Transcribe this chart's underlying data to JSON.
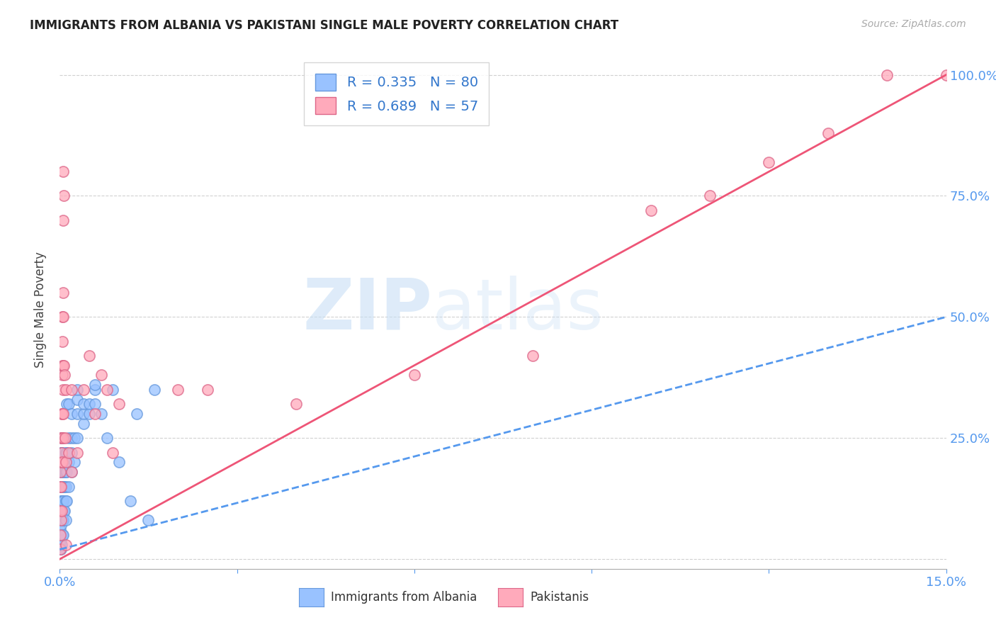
{
  "title": "IMMIGRANTS FROM ALBANIA VS PAKISTANI SINGLE MALE POVERTY CORRELATION CHART",
  "source": "Source: ZipAtlas.com",
  "ylabel": "Single Male Poverty",
  "albania_color": "#99c2ff",
  "albania_edge_color": "#6699dd",
  "pakistan_color": "#ffaabb",
  "pakistan_edge_color": "#dd6688",
  "albania_line_color": "#5599ee",
  "pakistan_line_color": "#ee5577",
  "albania_R": 0.335,
  "albania_N": 80,
  "pakistan_R": 0.689,
  "pakistan_N": 57,
  "legend_label_1": "Immigrants from Albania",
  "legend_label_2": "Pakistanis",
  "watermark_zip": "ZIP",
  "watermark_atlas": "atlas",
  "background_color": "#ffffff",
  "albania_scatter": [
    [
      0.0001,
      0.02
    ],
    [
      0.0001,
      0.03
    ],
    [
      0.0001,
      0.04
    ],
    [
      0.0001,
      0.05
    ],
    [
      0.0001,
      0.06
    ],
    [
      0.0002,
      0.02
    ],
    [
      0.0002,
      0.04
    ],
    [
      0.0002,
      0.07
    ],
    [
      0.0002,
      0.1
    ],
    [
      0.0002,
      0.12
    ],
    [
      0.0002,
      0.15
    ],
    [
      0.0002,
      0.18
    ],
    [
      0.0002,
      0.2
    ],
    [
      0.0002,
      0.22
    ],
    [
      0.0003,
      0.03
    ],
    [
      0.0003,
      0.08
    ],
    [
      0.0003,
      0.12
    ],
    [
      0.0003,
      0.15
    ],
    [
      0.0003,
      0.18
    ],
    [
      0.0003,
      0.22
    ],
    [
      0.0003,
      0.25
    ],
    [
      0.0004,
      0.05
    ],
    [
      0.0004,
      0.1
    ],
    [
      0.0004,
      0.15
    ],
    [
      0.0004,
      0.18
    ],
    [
      0.0004,
      0.22
    ],
    [
      0.0005,
      0.05
    ],
    [
      0.0005,
      0.08
    ],
    [
      0.0005,
      0.12
    ],
    [
      0.0005,
      0.15
    ],
    [
      0.0005,
      0.2
    ],
    [
      0.0006,
      0.08
    ],
    [
      0.0006,
      0.12
    ],
    [
      0.0006,
      0.15
    ],
    [
      0.0006,
      0.18
    ],
    [
      0.0007,
      0.1
    ],
    [
      0.0007,
      0.15
    ],
    [
      0.0007,
      0.2
    ],
    [
      0.0008,
      0.1
    ],
    [
      0.0008,
      0.15
    ],
    [
      0.0008,
      0.18
    ],
    [
      0.001,
      0.08
    ],
    [
      0.001,
      0.12
    ],
    [
      0.001,
      0.15
    ],
    [
      0.001,
      0.18
    ],
    [
      0.001,
      0.22
    ],
    [
      0.0012,
      0.12
    ],
    [
      0.0012,
      0.18
    ],
    [
      0.0012,
      0.22
    ],
    [
      0.0012,
      0.32
    ],
    [
      0.0015,
      0.15
    ],
    [
      0.0015,
      0.2
    ],
    [
      0.0015,
      0.25
    ],
    [
      0.0015,
      0.32
    ],
    [
      0.002,
      0.18
    ],
    [
      0.002,
      0.22
    ],
    [
      0.002,
      0.25
    ],
    [
      0.002,
      0.3
    ],
    [
      0.0025,
      0.2
    ],
    [
      0.0025,
      0.25
    ],
    [
      0.003,
      0.25
    ],
    [
      0.003,
      0.3
    ],
    [
      0.003,
      0.33
    ],
    [
      0.003,
      0.35
    ],
    [
      0.004,
      0.28
    ],
    [
      0.004,
      0.3
    ],
    [
      0.004,
      0.32
    ],
    [
      0.005,
      0.3
    ],
    [
      0.005,
      0.32
    ],
    [
      0.006,
      0.32
    ],
    [
      0.006,
      0.35
    ],
    [
      0.006,
      0.36
    ],
    [
      0.007,
      0.3
    ],
    [
      0.008,
      0.25
    ],
    [
      0.009,
      0.35
    ],
    [
      0.01,
      0.2
    ],
    [
      0.012,
      0.12
    ],
    [
      0.013,
      0.3
    ],
    [
      0.015,
      0.08
    ],
    [
      0.016,
      0.35
    ]
  ],
  "pakistan_scatter": [
    [
      0.0001,
      0.02
    ],
    [
      0.0001,
      0.05
    ],
    [
      0.0001,
      0.1
    ],
    [
      0.0001,
      0.15
    ],
    [
      0.0001,
      0.18
    ],
    [
      0.0002,
      0.08
    ],
    [
      0.0002,
      0.15
    ],
    [
      0.0002,
      0.2
    ],
    [
      0.0002,
      0.25
    ],
    [
      0.0003,
      0.1
    ],
    [
      0.0003,
      0.2
    ],
    [
      0.0003,
      0.22
    ],
    [
      0.0003,
      0.25
    ],
    [
      0.0003,
      0.3
    ],
    [
      0.0004,
      0.2
    ],
    [
      0.0004,
      0.3
    ],
    [
      0.0004,
      0.38
    ],
    [
      0.0004,
      0.4
    ],
    [
      0.0004,
      0.45
    ],
    [
      0.0004,
      0.5
    ],
    [
      0.0005,
      0.25
    ],
    [
      0.0005,
      0.3
    ],
    [
      0.0005,
      0.4
    ],
    [
      0.0005,
      0.7
    ],
    [
      0.0005,
      0.8
    ],
    [
      0.0006,
      0.35
    ],
    [
      0.0006,
      0.5
    ],
    [
      0.0006,
      0.55
    ],
    [
      0.0007,
      0.4
    ],
    [
      0.0007,
      0.75
    ],
    [
      0.0008,
      0.38
    ],
    [
      0.0009,
      0.25
    ],
    [
      0.001,
      0.03
    ],
    [
      0.001,
      0.2
    ],
    [
      0.001,
      0.35
    ],
    [
      0.0015,
      0.22
    ],
    [
      0.002,
      0.18
    ],
    [
      0.002,
      0.35
    ],
    [
      0.003,
      0.22
    ],
    [
      0.004,
      0.35
    ],
    [
      0.005,
      0.42
    ],
    [
      0.006,
      0.3
    ],
    [
      0.007,
      0.38
    ],
    [
      0.008,
      0.35
    ],
    [
      0.009,
      0.22
    ],
    [
      0.01,
      0.32
    ],
    [
      0.02,
      0.35
    ],
    [
      0.025,
      0.35
    ],
    [
      0.04,
      0.32
    ],
    [
      0.06,
      0.38
    ],
    [
      0.08,
      0.42
    ],
    [
      0.1,
      0.72
    ],
    [
      0.11,
      0.75
    ],
    [
      0.12,
      0.82
    ],
    [
      0.13,
      0.88
    ],
    [
      0.14,
      1.0
    ],
    [
      0.15,
      1.0
    ]
  ],
  "xlim": [
    0.0,
    0.15
  ],
  "ylim": [
    -0.02,
    1.05
  ],
  "albania_line_x": [
    0.0,
    0.15
  ],
  "albania_line_y": [
    0.02,
    0.5
  ],
  "pakistan_line_x": [
    0.0,
    0.15
  ],
  "pakistan_line_y": [
    0.0,
    1.0
  ]
}
